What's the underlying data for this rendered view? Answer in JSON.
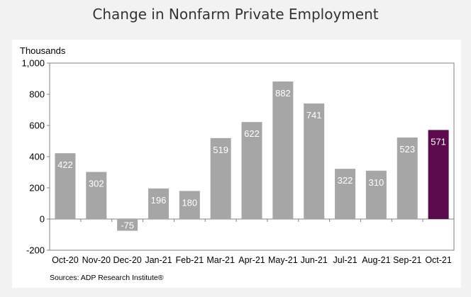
{
  "chart_data": {
    "type": "bar",
    "title": "Change in Nonfarm Private Employment",
    "ylabel": "Thousands",
    "xlabel": "",
    "source": "Sources: ADP Research Institute®",
    "categories": [
      "Oct-20",
      "Nov-20",
      "Dec-20",
      "Jan-21",
      "Feb-21",
      "Mar-21",
      "Apr-21",
      "May-21",
      "Jun-21",
      "Jul-21",
      "Aug-21",
      "Sep-21",
      "Oct-21"
    ],
    "values": [
      422,
      302,
      -75,
      196,
      180,
      519,
      622,
      882,
      741,
      322,
      310,
      523,
      571
    ],
    "data_labels": [
      "422",
      "302",
      "-75",
      "196",
      "180",
      "519",
      "622",
      "882",
      "741",
      "322",
      "310",
      "523",
      "571"
    ],
    "ylim": [
      -200,
      1000
    ],
    "yticks": [
      -200,
      0,
      200,
      400,
      600,
      800,
      1000
    ],
    "ytick_labels": [
      "-200",
      "0",
      "200",
      "400",
      "600",
      "800",
      "1,000"
    ],
    "grid": false,
    "colors": {
      "bar": "#a6a6a6",
      "highlight": "#5b0a4c",
      "label": "#ffffff"
    },
    "highlight_index": 12
  }
}
